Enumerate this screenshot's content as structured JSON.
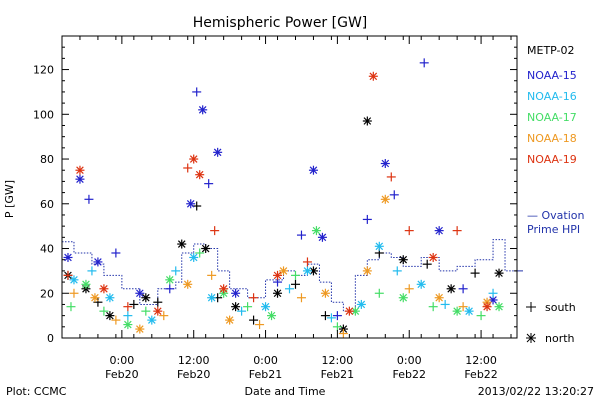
{
  "chart_data": {
    "type": "scatter",
    "title": "Hemispheric Power [GW]",
    "ylabel": "P [GW]",
    "xlabel": "Date and Time",
    "ylim": [
      0,
      135
    ],
    "xlim": [
      "2013-02-19T14:00",
      "2013-02-22T18:00"
    ],
    "y_ticks": [
      0,
      20,
      40,
      60,
      80,
      100,
      120
    ],
    "x_ticks": [
      {
        "x": "2013-02-20T00:00",
        "time": "0:00",
        "date": "Feb20"
      },
      {
        "x": "2013-02-20T12:00",
        "time": "12:00",
        "date": "Feb20"
      },
      {
        "x": "2013-02-21T00:00",
        "time": "0:00",
        "date": "Feb21"
      },
      {
        "x": "2013-02-21T12:00",
        "time": "12:00",
        "date": "Feb21"
      },
      {
        "x": "2013-02-22T00:00",
        "time": "0:00",
        "date": "Feb22"
      },
      {
        "x": "2013-02-22T12:00",
        "time": "12:00",
        "date": "Feb22"
      }
    ],
    "grid": false,
    "legend_position": "right",
    "series": [
      {
        "name": "METP-02",
        "color": "#000000",
        "points": [
          {
            "x": "2013-02-19T15:00",
            "y": 28,
            "m": "north"
          },
          {
            "x": "2013-02-19T18:00",
            "y": 22,
            "m": "north"
          },
          {
            "x": "2013-02-19T20:00",
            "y": 16,
            "m": "south"
          },
          {
            "x": "2013-02-19T22:00",
            "y": 10,
            "m": "north"
          },
          {
            "x": "2013-02-20T02:00",
            "y": 15,
            "m": "south"
          },
          {
            "x": "2013-02-20T04:00",
            "y": 18,
            "m": "north"
          },
          {
            "x": "2013-02-20T06:00",
            "y": 16,
            "m": "south"
          },
          {
            "x": "2013-02-20T10:00",
            "y": 42,
            "m": "north"
          },
          {
            "x": "2013-02-20T12:30",
            "y": 59,
            "m": "south"
          },
          {
            "x": "2013-02-20T14:00",
            "y": 40,
            "m": "north"
          },
          {
            "x": "2013-02-20T16:00",
            "y": 18,
            "m": "south"
          },
          {
            "x": "2013-02-20T19:00",
            "y": 14,
            "m": "north"
          },
          {
            "x": "2013-02-20T22:00",
            "y": 8,
            "m": "south"
          },
          {
            "x": "2013-02-21T02:00",
            "y": 20,
            "m": "north"
          },
          {
            "x": "2013-02-21T05:00",
            "y": 24,
            "m": "south"
          },
          {
            "x": "2013-02-21T08:00",
            "y": 30,
            "m": "north"
          },
          {
            "x": "2013-02-21T10:00",
            "y": 10,
            "m": "south"
          },
          {
            "x": "2013-02-21T13:00",
            "y": 4,
            "m": "north"
          },
          {
            "x": "2013-02-21T17:00",
            "y": 97,
            "m": "north"
          },
          {
            "x": "2013-02-21T19:00",
            "y": 38,
            "m": "south"
          },
          {
            "x": "2013-02-21T23:00",
            "y": 35,
            "m": "north"
          },
          {
            "x": "2013-02-22T03:00",
            "y": 33,
            "m": "south"
          },
          {
            "x": "2013-02-22T07:00",
            "y": 22,
            "m": "north"
          },
          {
            "x": "2013-02-22T11:00",
            "y": 29,
            "m": "south"
          },
          {
            "x": "2013-02-22T15:00",
            "y": 29,
            "m": "north"
          }
        ]
      },
      {
        "name": "NOAA-15",
        "color": "#2222cc",
        "points": [
          {
            "x": "2013-02-19T15:00",
            "y": 36,
            "m": "north"
          },
          {
            "x": "2013-02-19T17:00",
            "y": 71,
            "m": "north"
          },
          {
            "x": "2013-02-19T18:30",
            "y": 62,
            "m": "south"
          },
          {
            "x": "2013-02-19T20:00",
            "y": 34,
            "m": "north"
          },
          {
            "x": "2013-02-19T23:00",
            "y": 38,
            "m": "south"
          },
          {
            "x": "2013-02-20T03:00",
            "y": 20,
            "m": "north"
          },
          {
            "x": "2013-02-20T08:00",
            "y": 22,
            "m": "south"
          },
          {
            "x": "2013-02-20T12:30",
            "y": 110,
            "m": "south"
          },
          {
            "x": "2013-02-20T13:30",
            "y": 102,
            "m": "north"
          },
          {
            "x": "2013-02-20T16:00",
            "y": 83,
            "m": "north"
          },
          {
            "x": "2013-02-20T11:30",
            "y": 60,
            "m": "north"
          },
          {
            "x": "2013-02-20T14:30",
            "y": 69,
            "m": "south"
          },
          {
            "x": "2013-02-20T19:00",
            "y": 20,
            "m": "north"
          },
          {
            "x": "2013-02-21T02:00",
            "y": 25,
            "m": "south"
          },
          {
            "x": "2013-02-21T06:00",
            "y": 46,
            "m": "south"
          },
          {
            "x": "2013-02-21T08:00",
            "y": 75,
            "m": "north"
          },
          {
            "x": "2013-02-21T09:30",
            "y": 45,
            "m": "north"
          },
          {
            "x": "2013-02-21T12:00",
            "y": 10,
            "m": "south"
          },
          {
            "x": "2013-02-21T17:00",
            "y": 53,
            "m": "south"
          },
          {
            "x": "2013-02-21T20:00",
            "y": 78,
            "m": "north"
          },
          {
            "x": "2013-02-21T21:30",
            "y": 64,
            "m": "south"
          },
          {
            "x": "2013-02-22T02:30",
            "y": 123,
            "m": "south"
          },
          {
            "x": "2013-02-22T05:00",
            "y": 48,
            "m": "north"
          },
          {
            "x": "2013-02-22T09:00",
            "y": 22,
            "m": "south"
          },
          {
            "x": "2013-02-22T14:00",
            "y": 17,
            "m": "north"
          }
        ]
      },
      {
        "name": "NOAA-16",
        "color": "#22bbee",
        "points": [
          {
            "x": "2013-02-19T16:00",
            "y": 26,
            "m": "north"
          },
          {
            "x": "2013-02-19T19:00",
            "y": 30,
            "m": "south"
          },
          {
            "x": "2013-02-19T22:00",
            "y": 18,
            "m": "north"
          },
          {
            "x": "2013-02-20T01:00",
            "y": 10,
            "m": "south"
          },
          {
            "x": "2013-02-20T05:00",
            "y": 8,
            "m": "north"
          },
          {
            "x": "2013-02-20T09:00",
            "y": 30,
            "m": "south"
          },
          {
            "x": "2013-02-20T12:00",
            "y": 36,
            "m": "north"
          },
          {
            "x": "2013-02-20T15:00",
            "y": 18,
            "m": "north"
          },
          {
            "x": "2013-02-20T20:00",
            "y": 12,
            "m": "south"
          },
          {
            "x": "2013-02-21T00:00",
            "y": 14,
            "m": "north"
          },
          {
            "x": "2013-02-21T04:00",
            "y": 22,
            "m": "south"
          },
          {
            "x": "2013-02-21T07:00",
            "y": 30,
            "m": "north"
          },
          {
            "x": "2013-02-21T11:00",
            "y": 9,
            "m": "south"
          },
          {
            "x": "2013-02-21T16:00",
            "y": 15,
            "m": "north"
          },
          {
            "x": "2013-02-21T19:00",
            "y": 41,
            "m": "north"
          },
          {
            "x": "2013-02-21T22:00",
            "y": 30,
            "m": "south"
          },
          {
            "x": "2013-02-22T02:00",
            "y": 24,
            "m": "north"
          },
          {
            "x": "2013-02-22T06:00",
            "y": 15,
            "m": "south"
          },
          {
            "x": "2013-02-22T10:00",
            "y": 12,
            "m": "north"
          },
          {
            "x": "2013-02-22T14:00",
            "y": 20,
            "m": "south"
          }
        ]
      },
      {
        "name": "NOAA-17",
        "color": "#44dd66",
        "points": [
          {
            "x": "2013-02-19T15:30",
            "y": 14,
            "m": "south"
          },
          {
            "x": "2013-02-19T18:00",
            "y": 24,
            "m": "north"
          },
          {
            "x": "2013-02-19T21:00",
            "y": 12,
            "m": "south"
          },
          {
            "x": "2013-02-20T01:00",
            "y": 6,
            "m": "north"
          },
          {
            "x": "2013-02-20T04:00",
            "y": 12,
            "m": "south"
          },
          {
            "x": "2013-02-20T08:00",
            "y": 26,
            "m": "north"
          },
          {
            "x": "2013-02-20T13:00",
            "y": 38,
            "m": "south"
          },
          {
            "x": "2013-02-20T17:00",
            "y": 20,
            "m": "north"
          },
          {
            "x": "2013-02-20T21:00",
            "y": 14,
            "m": "south"
          },
          {
            "x": "2013-02-21T01:00",
            "y": 10,
            "m": "north"
          },
          {
            "x": "2013-02-21T05:00",
            "y": 28,
            "m": "south"
          },
          {
            "x": "2013-02-21T08:30",
            "y": 48,
            "m": "north"
          },
          {
            "x": "2013-02-21T12:00",
            "y": 5,
            "m": "south"
          },
          {
            "x": "2013-02-21T15:00",
            "y": 12,
            "m": "north"
          },
          {
            "x": "2013-02-21T19:00",
            "y": 20,
            "m": "south"
          },
          {
            "x": "2013-02-21T23:00",
            "y": 18,
            "m": "north"
          },
          {
            "x": "2013-02-22T04:00",
            "y": 14,
            "m": "south"
          },
          {
            "x": "2013-02-22T08:00",
            "y": 12,
            "m": "north"
          },
          {
            "x": "2013-02-22T12:00",
            "y": 10,
            "m": "south"
          },
          {
            "x": "2013-02-22T15:00",
            "y": 14,
            "m": "north"
          }
        ]
      },
      {
        "name": "NOAA-18",
        "color": "#ee9922",
        "points": [
          {
            "x": "2013-02-19T16:00",
            "y": 20,
            "m": "south"
          },
          {
            "x": "2013-02-19T19:30",
            "y": 18,
            "m": "north"
          },
          {
            "x": "2013-02-19T23:00",
            "y": 8,
            "m": "south"
          },
          {
            "x": "2013-02-20T03:00",
            "y": 4,
            "m": "north"
          },
          {
            "x": "2013-02-20T07:00",
            "y": 10,
            "m": "south"
          },
          {
            "x": "2013-02-20T11:00",
            "y": 24,
            "m": "north"
          },
          {
            "x": "2013-02-20T15:00",
            "y": 28,
            "m": "south"
          },
          {
            "x": "2013-02-20T18:00",
            "y": 8,
            "m": "north"
          },
          {
            "x": "2013-02-20T23:00",
            "y": 6,
            "m": "south"
          },
          {
            "x": "2013-02-21T03:00",
            "y": 30,
            "m": "north"
          },
          {
            "x": "2013-02-21T06:00",
            "y": 18,
            "m": "south"
          },
          {
            "x": "2013-02-21T10:00",
            "y": 20,
            "m": "north"
          },
          {
            "x": "2013-02-21T13:00",
            "y": 2,
            "m": "south"
          },
          {
            "x": "2013-02-21T17:00",
            "y": 30,
            "m": "north"
          },
          {
            "x": "2013-02-21T20:00",
            "y": 62,
            "m": "north"
          },
          {
            "x": "2013-02-22T00:00",
            "y": 22,
            "m": "south"
          },
          {
            "x": "2013-02-22T05:00",
            "y": 18,
            "m": "north"
          },
          {
            "x": "2013-02-22T09:00",
            "y": 14,
            "m": "south"
          },
          {
            "x": "2013-02-22T13:00",
            "y": 16,
            "m": "north"
          }
        ]
      },
      {
        "name": "NOAA-19",
        "color": "#dd3311",
        "points": [
          {
            "x": "2013-02-19T17:00",
            "y": 75,
            "m": "north"
          },
          {
            "x": "2013-02-19T15:00",
            "y": 28,
            "m": "south"
          },
          {
            "x": "2013-02-19T21:00",
            "y": 22,
            "m": "north"
          },
          {
            "x": "2013-02-20T01:00",
            "y": 14,
            "m": "south"
          },
          {
            "x": "2013-02-20T06:00",
            "y": 12,
            "m": "north"
          },
          {
            "x": "2013-02-20T11:00",
            "y": 76,
            "m": "south"
          },
          {
            "x": "2013-02-20T12:00",
            "y": 80,
            "m": "north"
          },
          {
            "x": "2013-02-20T13:00",
            "y": 73,
            "m": "north"
          },
          {
            "x": "2013-02-20T15:30",
            "y": 48,
            "m": "south"
          },
          {
            "x": "2013-02-20T17:00",
            "y": 22,
            "m": "north"
          },
          {
            "x": "2013-02-20T22:00",
            "y": 18,
            "m": "south"
          },
          {
            "x": "2013-02-21T02:00",
            "y": 28,
            "m": "north"
          },
          {
            "x": "2013-02-21T07:00",
            "y": 34,
            "m": "south"
          },
          {
            "x": "2013-02-21T14:00",
            "y": 12,
            "m": "north"
          },
          {
            "x": "2013-02-21T18:00",
            "y": 117,
            "m": "north"
          },
          {
            "x": "2013-02-21T21:00",
            "y": 72,
            "m": "south"
          },
          {
            "x": "2013-02-22T00:00",
            "y": 48,
            "m": "south"
          },
          {
            "x": "2013-02-22T04:00",
            "y": 36,
            "m": "north"
          },
          {
            "x": "2013-02-22T08:00",
            "y": 48,
            "m": "south"
          },
          {
            "x": "2013-02-22T13:00",
            "y": 14,
            "m": "north"
          }
        ]
      }
    ],
    "ovation_prime_hpi": {
      "name": "Ovation Prime HPI",
      "color": "#2233aa",
      "steps": [
        {
          "x": "2013-02-19T14:00",
          "y": 43
        },
        {
          "x": "2013-02-19T16:00",
          "y": 38
        },
        {
          "x": "2013-02-19T19:00",
          "y": 33
        },
        {
          "x": "2013-02-19T21:00",
          "y": 28
        },
        {
          "x": "2013-02-20T00:00",
          "y": 22
        },
        {
          "x": "2013-02-20T03:00",
          "y": 15
        },
        {
          "x": "2013-02-20T06:00",
          "y": 22
        },
        {
          "x": "2013-02-20T09:00",
          "y": 25
        },
        {
          "x": "2013-02-20T10:00",
          "y": 38
        },
        {
          "x": "2013-02-20T12:00",
          "y": 42
        },
        {
          "x": "2013-02-20T14:00",
          "y": 40
        },
        {
          "x": "2013-02-20T16:00",
          "y": 30
        },
        {
          "x": "2013-02-20T18:00",
          "y": 22
        },
        {
          "x": "2013-02-20T21:00",
          "y": 18
        },
        {
          "x": "2013-02-21T00:00",
          "y": 26
        },
        {
          "x": "2013-02-21T03:00",
          "y": 30
        },
        {
          "x": "2013-02-21T05:00",
          "y": 28
        },
        {
          "x": "2013-02-21T07:00",
          "y": 33
        },
        {
          "x": "2013-02-21T09:00",
          "y": 25
        },
        {
          "x": "2013-02-21T11:00",
          "y": 16
        },
        {
          "x": "2013-02-21T13:00",
          "y": 12
        },
        {
          "x": "2013-02-21T15:00",
          "y": 28
        },
        {
          "x": "2013-02-21T17:00",
          "y": 35
        },
        {
          "x": "2013-02-21T19:00",
          "y": 38
        },
        {
          "x": "2013-02-21T21:00",
          "y": 36
        },
        {
          "x": "2013-02-21T23:00",
          "y": 32
        },
        {
          "x": "2013-02-22T02:00",
          "y": 36
        },
        {
          "x": "2013-02-22T05:00",
          "y": 30
        },
        {
          "x": "2013-02-22T08:00",
          "y": 32
        },
        {
          "x": "2013-02-22T11:00",
          "y": 35
        },
        {
          "x": "2013-02-22T14:00",
          "y": 44
        },
        {
          "x": "2013-02-22T16:00",
          "y": 30
        },
        {
          "x": "2013-02-22T18:00",
          "y": 30
        }
      ]
    },
    "legend": {
      "entries": [
        "METP-02",
        "NOAA-15",
        "NOAA-16",
        "NOAA-17",
        "NOAA-18",
        "NOAA-19"
      ],
      "hpi_line1": "— Ovation",
      "hpi_line2": "Prime HPI",
      "south_label": "south",
      "north_label": "north"
    },
    "footer": {
      "left": "Plot: CCMC",
      "right": "2013/02/22 13:20:27"
    }
  }
}
